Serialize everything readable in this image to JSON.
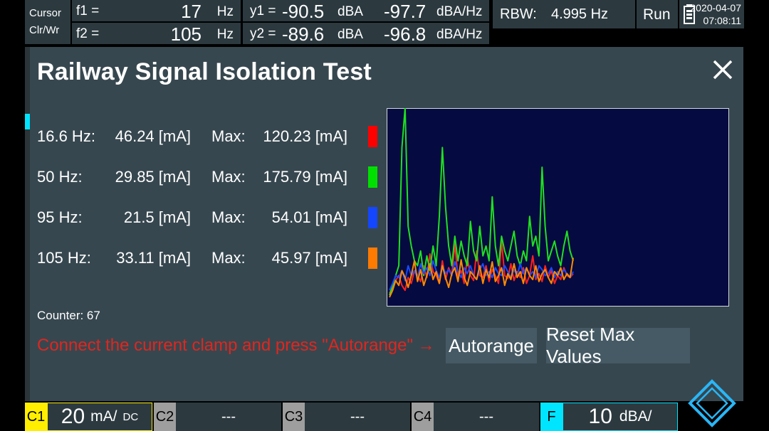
{
  "topbar": {
    "cursor_label": "Cursor",
    "clrwr_label": "Clr/Wr",
    "f1": {
      "label": "f1 =",
      "value": "17",
      "unit": "Hz"
    },
    "f2": {
      "label": "f2 =",
      "value": "105",
      "unit": "Hz"
    },
    "y1": {
      "label": "y1 =",
      "value": "-90.5",
      "unit": "dBA",
      "value2": "-97.7",
      "unit2": "dBA/Hz"
    },
    "y2": {
      "label": "y2 =",
      "value": "-89.6",
      "unit": "dBA",
      "value2": "-96.8",
      "unit2": "dBA/Hz"
    },
    "rbw_label": "RBW:",
    "rbw_value": "4.995 Hz",
    "run_label": "Run",
    "date": "2020-04-07",
    "time": "07:08:11"
  },
  "dialog": {
    "title": "Railway Signal Isolation Test",
    "max_label": "Max:",
    "rows": [
      {
        "freq": "16.6 Hz:",
        "value": "46.24 [mA]",
        "max": "120.23 [mA]",
        "color": "#ff0000"
      },
      {
        "freq": "50 Hz:",
        "value": "29.85 [mA]",
        "max": "175.79 [mA]",
        "color": "#00e000"
      },
      {
        "freq": "95 Hz:",
        "value": "21.5 [mA]",
        "max": "54.01 [mA]",
        "color": "#1446ff"
      },
      {
        "freq": "105 Hz:",
        "value": "33.11 [mA]",
        "max": "45.97 [mA]",
        "color": "#ff7a00"
      }
    ],
    "counter": "Counter: 67",
    "message": "Connect the current clamp and press \"Autorange\" →",
    "autorange_label": "Autorange",
    "reset_label": "Reset Max Values"
  },
  "chart_data": {
    "type": "line",
    "ylim": [
      0,
      200
    ],
    "x_count": 60,
    "background": "#050a40",
    "series": [
      {
        "color": "#ff2020",
        "values": [
          12,
          18,
          25,
          30,
          20,
          15,
          28,
          22,
          35,
          30,
          24,
          40,
          28,
          52,
          34,
          30,
          22,
          45,
          26,
          38,
          30,
          62,
          28,
          35,
          22,
          48,
          30,
          25,
          55,
          30,
          28,
          40,
          24,
          36,
          30,
          22,
          65,
          30,
          27,
          42,
          25,
          34,
          28,
          38,
          22,
          30,
          50,
          26,
          32,
          24,
          40,
          28,
          35,
          22,
          30,
          26,
          38,
          30,
          28,
          32
        ]
      },
      {
        "color": "#20e020",
        "values": [
          10,
          20,
          30,
          40,
          160,
          200,
          80,
          60,
          45,
          40,
          55,
          30,
          50,
          35,
          60,
          40,
          90,
          160,
          100,
          60,
          40,
          70,
          45,
          65,
          50,
          40,
          85,
          55,
          45,
          80,
          50,
          60,
          45,
          110,
          60,
          40,
          70,
          55,
          45,
          60,
          75,
          50,
          40,
          55,
          45,
          90,
          60,
          70,
          50,
          140,
          80,
          45,
          55,
          65,
          50,
          40,
          60,
          75,
          55,
          45
        ]
      },
      {
        "color": "#1a4aff",
        "values": [
          15,
          22,
          30,
          28,
          35,
          25,
          40,
          30,
          35,
          28,
          42,
          32,
          38,
          30,
          45,
          35,
          28,
          40,
          32,
          36,
          30,
          44,
          34,
          28,
          38,
          32,
          40,
          30,
          26,
          36,
          42,
          30,
          34,
          28,
          38,
          32,
          30,
          40,
          34,
          28,
          36,
          30,
          42,
          32,
          38,
          30,
          34,
          28,
          40,
          36,
          30,
          32,
          38,
          28,
          34,
          30,
          36,
          32,
          28,
          34
        ]
      },
      {
        "color": "#ff8a00",
        "values": [
          8,
          15,
          25,
          20,
          35,
          28,
          18,
          30,
          45,
          24,
          36,
          20,
          30,
          42,
          26,
          34,
          22,
          40,
          28,
          18,
          32,
          38,
          24,
          46,
          28,
          20,
          34,
          30,
          26,
          40,
          22,
          36,
          28,
          44,
          24,
          30,
          38,
          20,
          32,
          26,
          42,
          28,
          34,
          22,
          38,
          30,
          26,
          40,
          24,
          32,
          36,
          28,
          22,
          34,
          30,
          38,
          26,
          32,
          28,
          48
        ]
      }
    ]
  },
  "bottombar": {
    "c1_label": "C1",
    "c1_value": "20",
    "c1_unit": "mA/",
    "c1_coupling": "DC",
    "c2_label": "C2",
    "c2_value": "---",
    "c3_label": "C3",
    "c3_value": "---",
    "c4_label": "C4",
    "c4_value": "---",
    "f_label": "F",
    "f_value": "10",
    "f_unit": "dBA/"
  },
  "colors": {
    "c1": "#ffee00",
    "c2": "#9e9e9e",
    "f": "#00e5ff",
    "message": "#e0261f"
  }
}
